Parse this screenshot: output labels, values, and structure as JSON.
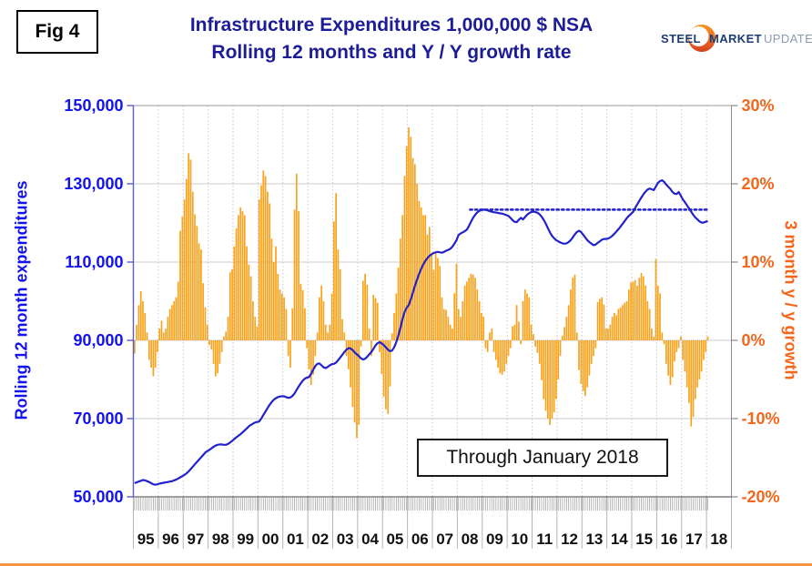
{
  "figure_label": "Fig 4",
  "title": {
    "line1": "Infrastructure Expenditures 1,000,000 $ NSA",
    "line2": "Rolling 12 months and Y / Y growth rate",
    "color": "#1C1C96"
  },
  "logo": {
    "word1": "STEEL",
    "word2": "MARKET",
    "word3": "UPDATE"
  },
  "annotation_box_text": "Through January 2018",
  "left_axis": {
    "title": "Rolling 12 month expenditures",
    "tick_labels": [
      "150,000",
      "130,000",
      "110,000",
      "90,000",
      "70,000",
      "50,000"
    ],
    "color": "#1212EE"
  },
  "right_axis": {
    "title": "3 month y / y growth",
    "tick_labels": [
      "30%",
      "20%",
      "10%",
      "0%",
      "-10%",
      "-20%"
    ],
    "color": "#F4661B"
  },
  "x_axis": {
    "year_labels": [
      "95",
      "96",
      "97",
      "98",
      "99",
      "00",
      "01",
      "02",
      "03",
      "04",
      "05",
      "06",
      "07",
      "08",
      "09",
      "10",
      "11",
      "12",
      "13",
      "14",
      "15",
      "16",
      "17",
      "18"
    ]
  },
  "chart_data": {
    "type": "bar",
    "subtype": "monthly bars (right axis, % growth) + line (left axis, expenditures) + dotted reference line",
    "frequency": "monthly",
    "start": "1995-01",
    "end": "2018-01",
    "left_ylim": [
      50000,
      150000
    ],
    "right_ylim": [
      -20,
      30
    ],
    "grid": "horizontal solid every 20,000 / vertical dotted at year boundaries",
    "legend": "none",
    "bar_color": "#F9A21B",
    "line_color": "#2222CC",
    "reference_line": {
      "style": "dotted",
      "axis": "left",
      "value": 123400,
      "from": "2008-07",
      "to": "2018-01",
      "color": "#2222CC"
    },
    "bar_series_name": "3 month y / y growth (%)",
    "bars_pct_by_year": {
      "1995": [
        -1.7,
        2,
        4.5,
        6.3,
        5,
        3.5,
        1,
        -2.5,
        -3.5,
        -4.6,
        -3.5,
        -1.5
      ],
      "1996": [
        1.5,
        2.5,
        1,
        1.5,
        3,
        4,
        4.5,
        5,
        5.5,
        7.5,
        14,
        15.8
      ],
      "1997": [
        18,
        20.6,
        23.9,
        23.1,
        19,
        16.1,
        14.6,
        12.4,
        11.6,
        7.3,
        4.2,
        2
      ],
      "1998": [
        -0.6,
        -1.2,
        -3,
        -4.6,
        -4.2,
        -3,
        -1.5,
        0.5,
        1.1,
        3,
        8.7,
        9.1
      ],
      "1999": [
        12,
        14.3,
        16,
        17,
        16.5,
        16,
        12,
        9.7,
        8.2,
        5,
        3,
        1.8
      ],
      "2000": [
        18,
        19.8,
        21.7,
        21,
        19,
        17.5,
        13,
        10,
        12,
        8.5,
        6.5,
        6
      ],
      "2001": [
        5.5,
        4,
        -2,
        -3.5,
        4.1,
        16.7,
        21.3,
        16.5,
        7.2,
        6.4,
        4.1,
        -1
      ],
      "2002": [
        -3.7,
        -5.7,
        -4.4,
        -2,
        1,
        5.5,
        7,
        5,
        2,
        1,
        2,
        6
      ],
      "2003": [
        15.2,
        18.8,
        11.6,
        9.1,
        2.7,
        1,
        -2,
        -3.7,
        -6,
        -8.5,
        -10.5,
        -12.5
      ],
      "2004": [
        -10.8,
        -0.8,
        7.6,
        8.5,
        7.1,
        1.5,
        -2,
        5.8,
        5.4,
        4.8,
        -1.5,
        -4.3
      ],
      "2005": [
        -7.2,
        -8.8,
        -9.4,
        -5.9,
        0.9,
        3.5,
        6,
        9.3,
        13,
        16,
        21,
        24.8
      ],
      "2006": [
        27.2,
        26,
        23.3,
        22.5,
        20,
        17.8,
        17,
        16,
        16,
        13.5,
        14.5,
        11
      ],
      "2007": [
        9,
        11.1,
        10.5,
        9.5,
        5.5,
        4,
        3.9,
        3,
        2,
        1.5,
        6,
        9.8
      ],
      "2008": [
        4,
        3,
        5,
        7,
        7.5,
        8,
        8.5,
        8.4,
        8,
        6.5,
        5,
        3.5
      ],
      "2009": [
        3,
        -1,
        -1.5,
        1,
        1.5,
        -1.5,
        -2.5,
        -3.5,
        -4.2,
        -4.4,
        -4,
        -3
      ],
      "2010": [
        -2,
        -1,
        1.8,
        2,
        4.5,
        2.4,
        -0.5,
        5,
        6.5,
        6,
        5.5,
        2
      ],
      "2011": [
        0.8,
        -0.8,
        -1.6,
        -3,
        -5.1,
        -7.5,
        -9,
        -10,
        -10.8,
        -10,
        -9.2,
        -7.5
      ],
      "2012": [
        -5,
        -2,
        0.6,
        1.7,
        3,
        4.5,
        6.5,
        8,
        8.4,
        1,
        -3.8,
        -5.6
      ],
      "2013": [
        -6.5,
        -7.1,
        -6,
        -4.5,
        -3,
        -2,
        -1,
        4.9,
        5.3,
        5.5,
        4.6,
        1.5
      ],
      "2014": [
        1.5,
        2,
        3,
        3.5,
        3.2,
        4,
        4.2,
        4.5,
        4.8,
        5,
        6.5,
        7.4
      ],
      "2015": [
        7.5,
        7.7,
        7,
        8,
        8.6,
        8.2,
        7,
        5,
        4,
        1.5,
        0.5,
        10.4
      ],
      "2016": [
        7,
        6,
        1,
        -0.5,
        -3,
        -4.5,
        -5.7,
        -4.7,
        -2.7,
        -1.5,
        -1,
        0.5
      ],
      "2017": [
        -2.5,
        -4,
        -6,
        -8,
        -11,
        -9.8,
        -7.5,
        -6,
        -5,
        -4,
        -2.5,
        -1.5
      ],
      "2018": [
        0.5
      ]
    },
    "line_series_name": "Rolling 12 month expenditures (1,000,000 $ NSA)",
    "line_by_year": {
      "1995": [
        53500,
        53700,
        53900,
        54100,
        54300,
        54200,
        54000,
        53800,
        53500,
        53200,
        53100,
        53200
      ],
      "1996": [
        53400,
        53500,
        53600,
        53700,
        53800,
        53900,
        54000,
        54200,
        54400,
        54700,
        55000,
        55300
      ],
      "1997": [
        55600,
        56000,
        56500,
        57100,
        57700,
        58300,
        58900,
        59500,
        60100,
        60700,
        61300,
        61700
      ],
      "1998": [
        62000,
        62400,
        62800,
        63100,
        63300,
        63400,
        63400,
        63300,
        63300,
        63500,
        63900,
        64300
      ],
      "1999": [
        64800,
        65200,
        65600,
        66000,
        66500,
        67000,
        67500,
        68000,
        68400,
        68700,
        69000,
        69150
      ],
      "2000": [
        69250,
        70000,
        70900,
        71800,
        72700,
        73500,
        74200,
        74800,
        75200,
        75500,
        75650,
        75700
      ],
      "2001": [
        75700,
        75500,
        75300,
        75400,
        75800,
        76400,
        77300,
        78200,
        79000,
        79700,
        80200,
        80500
      ],
      "2002": [
        80600,
        81500,
        82500,
        83400,
        84000,
        84100,
        83600,
        83100,
        82900,
        83200,
        83600,
        83900
      ],
      "2003": [
        84000,
        84300,
        84900,
        85600,
        86300,
        87000,
        87600,
        88000,
        87900,
        87500,
        86900,
        86400
      ],
      "2004": [
        86000,
        85400,
        85100,
        85300,
        85800,
        86400,
        87000,
        87800,
        88700,
        89300,
        89500,
        89200
      ],
      "2005": [
        88800,
        88200,
        87600,
        87200,
        87400,
        88200,
        89500,
        91200,
        93200,
        95400,
        97200,
        98300
      ],
      "2006": [
        99000,
        100500,
        102200,
        103900,
        105500,
        107000,
        108300,
        109400,
        110300,
        111000,
        111600,
        112000
      ],
      "2007": [
        112300,
        112500,
        112600,
        112500,
        112400,
        112600,
        112900,
        113100,
        113400,
        113900,
        114700,
        115600
      ],
      "2008": [
        116900,
        117300,
        117600,
        117900,
        118300,
        119200,
        120300,
        121300,
        122100,
        122700,
        123100,
        123300
      ],
      "2009": [
        123400,
        123350,
        123200,
        123000,
        122850,
        122750,
        122650,
        122550,
        122450,
        122400,
        122200,
        122000
      ],
      "2010": [
        121800,
        121300,
        120700,
        120300,
        120200,
        120800,
        121300,
        120900,
        121500,
        122100,
        122500,
        122800
      ],
      "2011": [
        122900,
        122800,
        122600,
        122200,
        121600,
        120800,
        119800,
        118700,
        117600,
        116700,
        116100,
        115600
      ],
      "2012": [
        115300,
        115000,
        114800,
        114700,
        114800,
        115100,
        115600,
        116300,
        117100,
        117700,
        118000,
        117700
      ],
      "2013": [
        117000,
        116300,
        115600,
        115100,
        114700,
        114300,
        114500,
        114900,
        115300,
        115700,
        115900,
        115900
      ],
      "2014": [
        116000,
        116300,
        116700,
        117200,
        117800,
        118400,
        119100,
        119800,
        120500,
        121200,
        121800,
        122300
      ],
      "2015": [
        122800,
        123800,
        124700,
        125600,
        126500,
        127300,
        128000,
        128500,
        128800,
        128600,
        128400,
        129300
      ],
      "2016": [
        130200,
        130700,
        130900,
        130500,
        129800,
        129200,
        128700,
        127900,
        127500,
        127400,
        127900,
        127000
      ],
      "2017": [
        126000,
        125300,
        124500,
        123700,
        122900,
        122100,
        121400,
        120900,
        120400,
        120100,
        120100,
        120300
      ],
      "2018": [
        120500
      ]
    }
  }
}
